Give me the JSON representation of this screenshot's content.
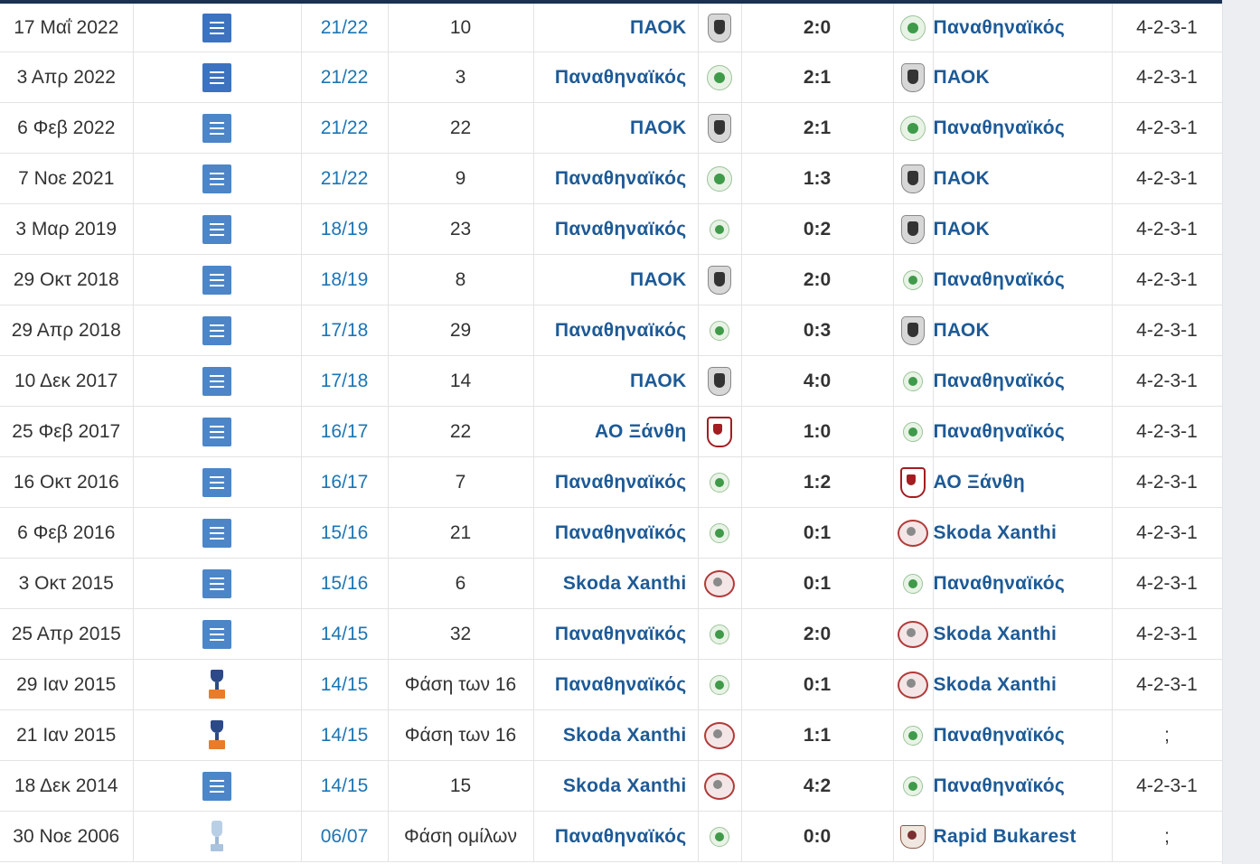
{
  "colors": {
    "club_link": "#1d5a96",
    "season_link": "#1d75b3",
    "score_win": "#7aa22c",
    "score_loss": "#b01616",
    "score_draw": "#3a7bb0"
  },
  "rows": [
    {
      "date": "17 Μαΐ 2022",
      "competition_icon": "league-icon",
      "season": "21/22",
      "round": "10",
      "home": "ΠΑΟΚ",
      "home_crest": "paok-crest",
      "score": "2:0",
      "result": "win",
      "away": "Παναθηναϊκός",
      "away_crest": "panathinaikos-crest",
      "formation": "4-2-3-1"
    },
    {
      "date": "3 Απρ 2022",
      "competition_icon": "league-icon",
      "season": "21/22",
      "round": "3",
      "home": "Παναθηναϊκός",
      "home_crest": "panathinaikos-crest",
      "score": "2:1",
      "result": "loss",
      "away": "ΠΑΟΚ",
      "away_crest": "paok-crest",
      "formation": "4-2-3-1"
    },
    {
      "date": "6 Φεβ 2022",
      "competition_icon": "league-icon",
      "season": "21/22",
      "round": "22",
      "home": "ΠΑΟΚ",
      "home_crest": "paok-crest",
      "score": "2:1",
      "result": "win",
      "away": "Παναθηναϊκός",
      "away_crest": "panathinaikos-crest",
      "formation": "4-2-3-1"
    },
    {
      "date": "7 Νοε 2021",
      "competition_icon": "league-icon",
      "season": "21/22",
      "round": "9",
      "home": "Παναθηναϊκός",
      "home_crest": "panathinaikos-crest",
      "score": "1:3",
      "result": "win",
      "away": "ΠΑΟΚ",
      "away_crest": "paok-crest",
      "formation": "4-2-3-1"
    },
    {
      "date": "3 Μαρ 2019",
      "competition_icon": "league-icon",
      "season": "18/19",
      "round": "23",
      "home": "Παναθηναϊκός",
      "home_crest": "panathinaikos-crest",
      "score": "0:2",
      "result": "win",
      "away": "ΠΑΟΚ",
      "away_crest": "paok-crest",
      "formation": "4-2-3-1"
    },
    {
      "date": "29 Οκτ 2018",
      "competition_icon": "league-icon",
      "season": "18/19",
      "round": "8",
      "home": "ΠΑΟΚ",
      "home_crest": "paok-crest",
      "score": "2:0",
      "result": "win",
      "away": "Παναθηναϊκός",
      "away_crest": "panathinaikos-crest",
      "formation": "4-2-3-1"
    },
    {
      "date": "29 Απρ 2018",
      "competition_icon": "league-icon",
      "season": "17/18",
      "round": "29",
      "home": "Παναθηναϊκός",
      "home_crest": "panathinaikos-crest",
      "score": "0:3",
      "result": "win",
      "away": "ΠΑΟΚ",
      "away_crest": "paok-crest",
      "formation": "4-2-3-1"
    },
    {
      "date": "10 Δεκ 2017",
      "competition_icon": "league-icon",
      "season": "17/18",
      "round": "14",
      "home": "ΠΑΟΚ",
      "home_crest": "paok-crest",
      "score": "4:0",
      "result": "win",
      "away": "Παναθηναϊκός",
      "away_crest": "panathinaikos-crest",
      "formation": "4-2-3-1"
    },
    {
      "date": "25 Φεβ 2017",
      "competition_icon": "league-icon",
      "season": "16/17",
      "round": "22",
      "home": "ΑΟ Ξάνθη",
      "home_crest": "ao-xanthi-crest",
      "score": "1:0",
      "result": "win",
      "away": "Παναθηναϊκός",
      "away_crest": "panathinaikos-crest",
      "formation": "4-2-3-1"
    },
    {
      "date": "16 Οκτ 2016",
      "competition_icon": "league-icon",
      "season": "16/17",
      "round": "7",
      "home": "Παναθηναϊκός",
      "home_crest": "panathinaikos-crest",
      "score": "1:2",
      "result": "win",
      "away": "ΑΟ Ξάνθη",
      "away_crest": "ao-xanthi-crest",
      "formation": "4-2-3-1"
    },
    {
      "date": "6 Φεβ 2016",
      "competition_icon": "league-icon",
      "season": "15/16",
      "round": "21",
      "home": "Παναθηναϊκός",
      "home_crest": "panathinaikos-crest",
      "score": "0:1",
      "result": "win",
      "away": "Skoda Xanthi",
      "away_crest": "skoda-xanthi-crest",
      "formation": "4-2-3-1"
    },
    {
      "date": "3 Οκτ 2015",
      "competition_icon": "league-icon",
      "season": "15/16",
      "round": "6",
      "home": "Skoda Xanthi",
      "home_crest": "skoda-xanthi-crest",
      "score": "0:1",
      "result": "loss",
      "away": "Παναθηναϊκός",
      "away_crest": "panathinaikos-crest",
      "formation": "4-2-3-1"
    },
    {
      "date": "25 Απρ 2015",
      "competition_icon": "league-icon",
      "season": "14/15",
      "round": "32",
      "home": "Παναθηναϊκός",
      "home_crest": "panathinaikos-crest",
      "score": "2:0",
      "result": "loss",
      "away": "Skoda Xanthi",
      "away_crest": "skoda-xanthi-crest",
      "formation": "4-2-3-1"
    },
    {
      "date": "29 Ιαν 2015",
      "competition_icon": "cup-icon",
      "season": "14/15",
      "round": "Φάση των 16",
      "home": "Παναθηναϊκός",
      "home_crest": "panathinaikos-crest",
      "score": "0:1",
      "result": "win",
      "away": "Skoda Xanthi",
      "away_crest": "skoda-xanthi-crest",
      "formation": "4-2-3-1"
    },
    {
      "date": "21 Ιαν 2015",
      "competition_icon": "cup-icon",
      "season": "14/15",
      "round": "Φάση των 16",
      "home": "Skoda Xanthi",
      "home_crest": "skoda-xanthi-crest",
      "score": "1:1",
      "result": "draw",
      "away": "Παναθηναϊκός",
      "away_crest": "panathinaikos-crest",
      "formation": ";"
    },
    {
      "date": "18 Δεκ 2014",
      "competition_icon": "league-icon",
      "season": "14/15",
      "round": "15",
      "home": "Skoda Xanthi",
      "home_crest": "skoda-xanthi-crest",
      "score": "4:2",
      "result": "win",
      "away": "Παναθηναϊκός",
      "away_crest": "panathinaikos-crest",
      "formation": "4-2-3-1"
    },
    {
      "date": "30 Νοε 2006",
      "competition_icon": "uefa-cup-icon",
      "season": "06/07",
      "round": "Φάση ομίλων",
      "home": "Παναθηναϊκός",
      "home_crest": "panathinaikos-crest",
      "score": "0:0",
      "result": "draw",
      "away": "Rapid Bukarest",
      "away_crest": "rapid-bukarest-crest",
      "formation": ";"
    }
  ]
}
